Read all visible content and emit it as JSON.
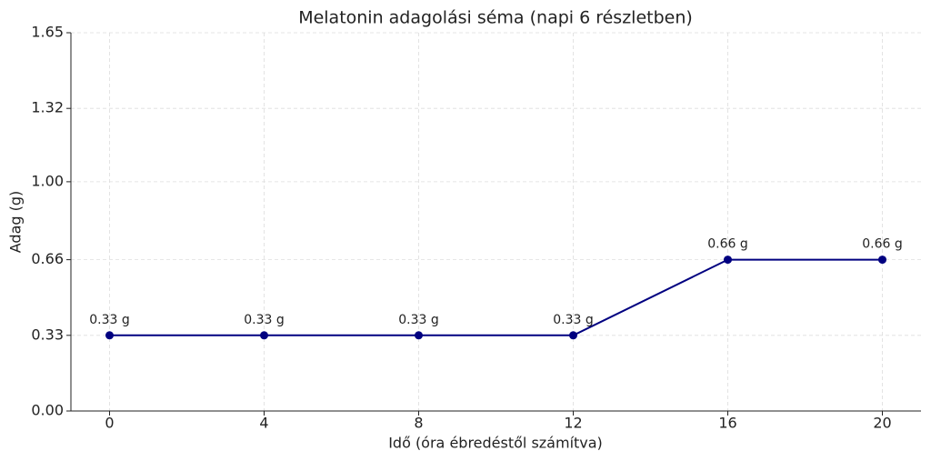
{
  "chart_data": {
    "type": "line",
    "title": "Melatonin adagolási séma (napi 6 részletben)",
    "x_label": "Idő (óra ébredéstől számítva)",
    "y_label": "Adag (g)",
    "x": [
      0,
      4,
      8,
      12,
      16,
      20
    ],
    "series": [
      {
        "color": "#000080",
        "values": [
          0.33,
          0.33,
          0.33,
          0.33,
          0.66,
          0.66
        ],
        "value_labels": [
          "0.33 g",
          "0.33 g",
          "0.33 g",
          "0.33 g",
          "0.66 g",
          "0.66 g"
        ]
      }
    ],
    "xlim": [
      -1,
      21
    ],
    "xticks": [
      0,
      4,
      8,
      12,
      16,
      20
    ],
    "ylim": [
      0,
      1.65
    ],
    "yticks": [
      {
        "value": 0,
        "label": "0.00"
      },
      0.33,
      0.66,
      {
        "value": 1,
        "label": "1.00"
      },
      1.32,
      1.65
    ],
    "grid": true
  }
}
